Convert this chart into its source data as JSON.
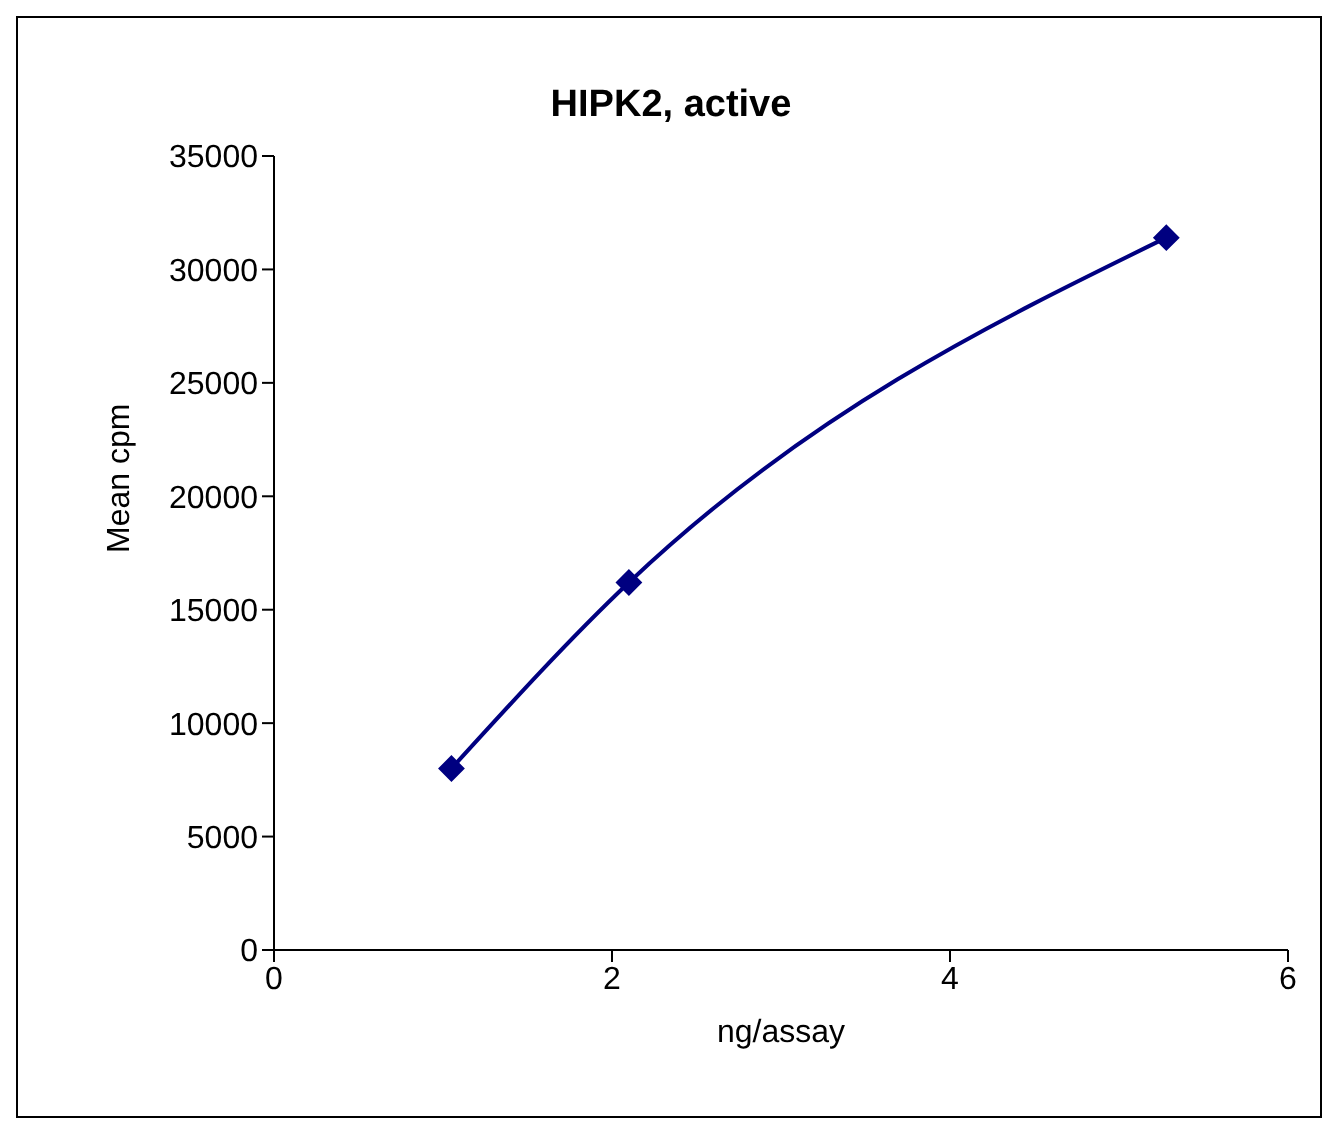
{
  "chart_data": {
    "type": "line",
    "title": "HIPK2, active",
    "xlabel": "ng/assay",
    "ylabel": "Mean cpm",
    "x": [
      1.05,
      2.1,
      5.28
    ],
    "series": [
      {
        "color": "#000080",
        "values": [
          8000,
          16200,
          31400
        ]
      }
    ],
    "xlim": [
      0,
      6
    ],
    "xticks": [
      0,
      2,
      4,
      6
    ],
    "ylim": [
      0,
      35000
    ],
    "yticks": [
      0,
      5000,
      10000,
      15000,
      20000,
      25000,
      30000,
      35000
    ],
    "grid": false,
    "legend": false,
    "marker": "diamond",
    "line_style": "solid"
  }
}
